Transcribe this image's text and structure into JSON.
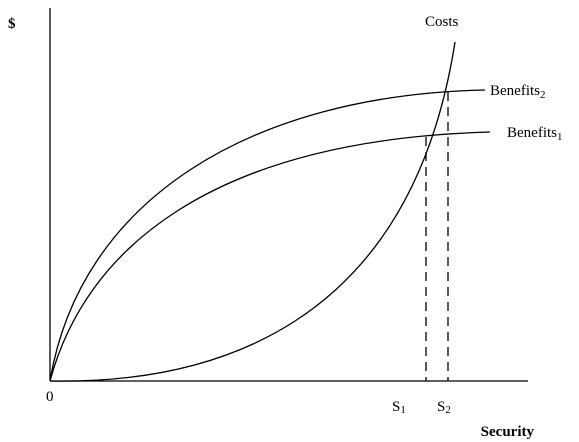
{
  "y_axis_label": "$",
  "x_axis_label": "Security",
  "origin_label": "0",
  "curves": {
    "costs": {
      "label": "Costs"
    },
    "benefits_2": {
      "label": "Benefits",
      "subscript": "2"
    },
    "benefits_1": {
      "label": "Benefits",
      "subscript": "1"
    }
  },
  "markers": [
    {
      "label": "S",
      "subscript": "1"
    },
    {
      "label": "S",
      "subscript": "2"
    }
  ]
}
